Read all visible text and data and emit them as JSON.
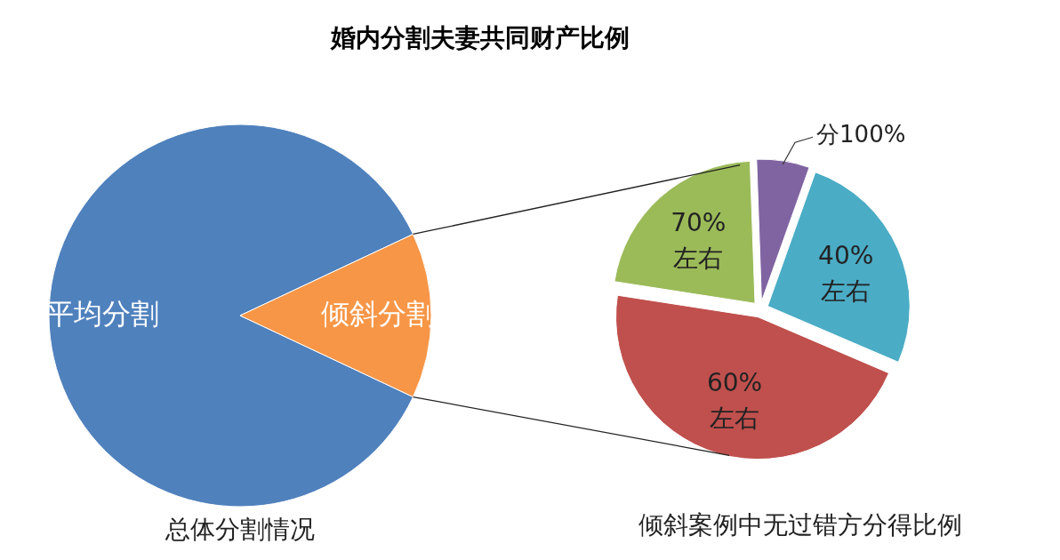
{
  "chart_data": [
    {
      "type": "pie",
      "title": "婚内分割夫妻共同财产比例",
      "xlabel": "总体分割情况",
      "categories": [
        "平均分割",
        "倾斜分割"
      ],
      "values": [
        86,
        14
      ],
      "colors": [
        "#4f81bd",
        "#f79646"
      ]
    },
    {
      "type": "pie",
      "xlabel": "倾斜案例中无过错方分得比例",
      "categories": [
        "分100%",
        "40%\n左右",
        "60%\n左右",
        "70%\n左右"
      ],
      "values": [
        6,
        26,
        46,
        22
      ],
      "colors": [
        "#8064a2",
        "#4bacc6",
        "#c0504d",
        "#9bbb59"
      ]
    }
  ]
}
